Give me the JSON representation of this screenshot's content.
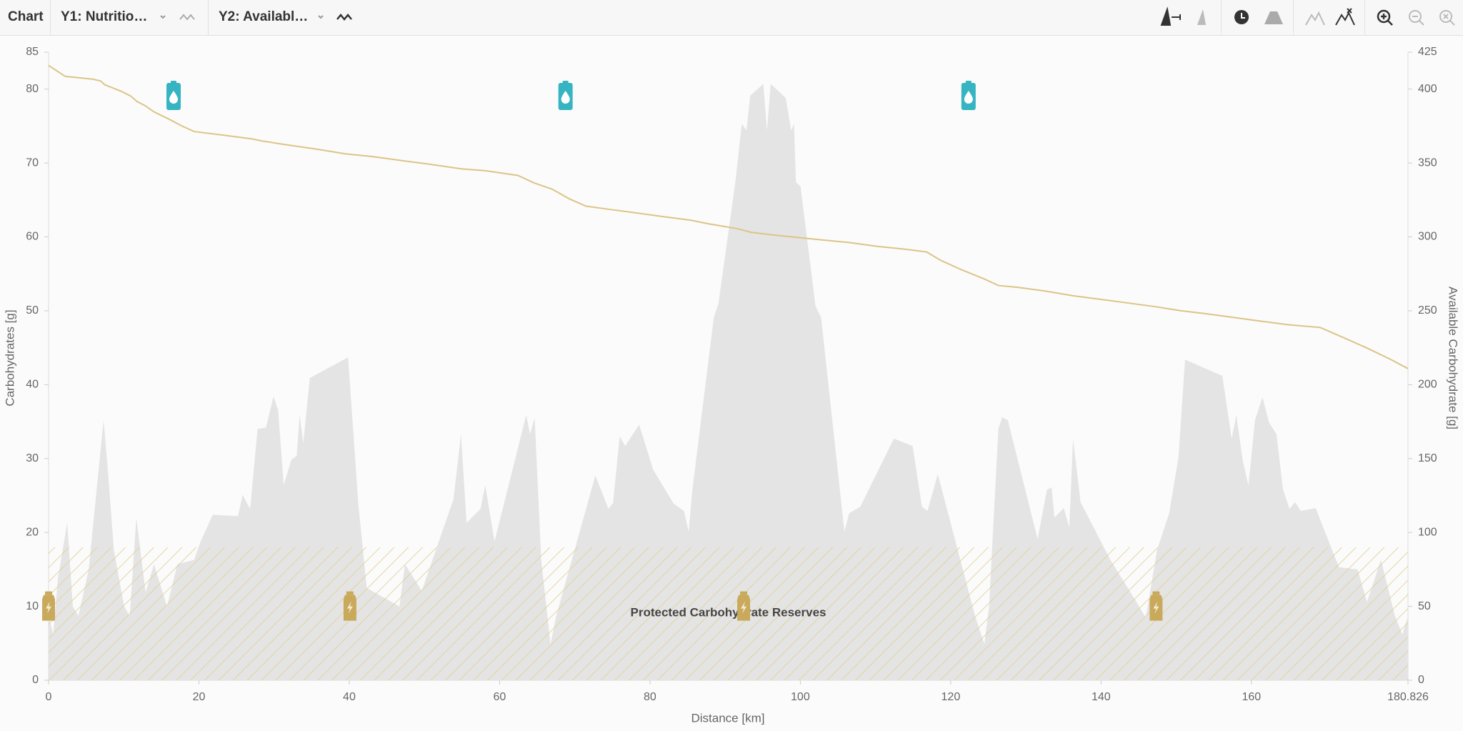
{
  "toolbar": {
    "title": "Chart",
    "y1": "Y1: Nutritio…",
    "y2": "Y2: Availabl…"
  },
  "chart_data": {
    "type": "line",
    "xlabel": "Distance [km]",
    "ylabel": "Carbohydrates [g]",
    "y2label": "Available Carbohydrate [g]",
    "xlim": [
      0,
      180.826
    ],
    "xticks": [
      0,
      20,
      40,
      60,
      80,
      100,
      120,
      140,
      160,
      180.826
    ],
    "ylim": [
      0,
      85
    ],
    "yticks": [
      0,
      10,
      20,
      30,
      40,
      50,
      60,
      70,
      80,
      85
    ],
    "y2lim": [
      0,
      425
    ],
    "y2ticks": [
      0,
      50,
      100,
      150,
      200,
      250,
      300,
      350,
      400,
      425
    ],
    "grid": false,
    "series": [
      {
        "type": "area",
        "color": "#e4e4e4",
        "x": [
          0,
          0.62,
          1.24,
          2.48,
          3.23,
          3.97,
          5.34,
          6.45,
          7.32,
          7.94,
          8.69,
          10.05,
          10.8,
          11.67,
          12.91,
          14.02,
          15.76,
          17.13,
          19.36,
          20.23,
          21.84,
          25.19,
          25.81,
          26.81,
          27.8,
          28.92,
          29.91,
          30.53,
          31.28,
          32.27,
          33.01,
          33.39,
          33.88,
          34.75,
          39.84,
          41.2,
          42.32,
          46.67,
          47.41,
          49.64,
          53.86,
          54.86,
          55.6,
          57.46,
          58.08,
          59.32,
          63.54,
          64.04,
          64.66,
          65.53,
          66.77,
          67.52,
          72.73,
          74.47,
          75.09,
          75.96,
          76.7,
          78.56,
          80.42,
          83.15,
          84.52,
          85.14,
          85.64,
          88.49,
          89.11,
          91.35,
          92.21,
          92.83,
          93.33,
          95.07,
          95.56,
          96.06,
          98.05,
          98.79,
          99.16,
          99.41,
          100.03,
          102.02,
          102.76,
          105.86,
          106.49,
          107.98,
          112.44,
          114.93,
          116.17,
          116.91,
          118.28,
          123.24,
          124.48,
          125.1,
          126.34,
          126.84,
          127.59,
          131.56,
          132.8,
          133.42,
          133.79,
          135.03,
          135.78,
          136.27,
          137.27,
          141.24,
          144.34,
          145.95,
          147.44,
          149.06,
          150.3,
          151.17,
          156.13,
          157.37,
          157.99,
          158.86,
          159.61,
          160.47,
          161.47,
          162.34,
          163.33,
          164.2,
          165.07,
          165.81,
          166.56,
          168.54,
          171.64,
          174.13,
          175.37,
          177.23,
          179.09,
          180.08,
          180.826
        ],
        "values": [
          8.7,
          6.2,
          13.8,
          21.3,
          10,
          8.7,
          15,
          26.4,
          35.2,
          27.7,
          17.6,
          10,
          8.7,
          22,
          11.9,
          15.7,
          10,
          15.7,
          16.3,
          18.8,
          22.4,
          22.2,
          25.1,
          23.2,
          34,
          34.2,
          38.4,
          36.6,
          26.4,
          29.8,
          30.4,
          35.9,
          32.1,
          40.9,
          43.7,
          23.9,
          12.5,
          10,
          15.7,
          12.1,
          24.5,
          33.3,
          21.3,
          23.2,
          26.4,
          18.8,
          35.9,
          33.3,
          35.5,
          16.3,
          4.9,
          8.7,
          27.7,
          23.2,
          24,
          33,
          31.7,
          34.6,
          28.5,
          23.9,
          22.9,
          20.1,
          25.8,
          49.1,
          51,
          67.4,
          75.3,
          74.4,
          79.1,
          80.7,
          74.4,
          80.7,
          78.8,
          74.4,
          75.3,
          67.4,
          66.8,
          50.6,
          49.1,
          20.1,
          22.6,
          23.5,
          32.7,
          31.7,
          23.5,
          22.9,
          27.9,
          8.7,
          4.9,
          10,
          34,
          35.6,
          35.2,
          19.1,
          25.8,
          26.1,
          22,
          23.3,
          20.7,
          32.7,
          24.1,
          16.3,
          11.2,
          8.5,
          17.6,
          22.6,
          30.2,
          43.4,
          41.2,
          32.7,
          35.9,
          29.6,
          26.4,
          35.2,
          38.3,
          34.9,
          33.3,
          25.8,
          23.2,
          24.1,
          22.9,
          23.3,
          15.3,
          15,
          10.6,
          16.3,
          8.7,
          6.2,
          8.7
        ]
      },
      {
        "type": "line",
        "axis": "y2",
        "color": "#dcc487",
        "x": [
          0,
          2.23,
          5.96,
          6.95,
          7.45,
          9.68,
          10.92,
          11.79,
          12.78,
          14.02,
          15.89,
          17.75,
          19.36,
          23.33,
          27.06,
          28.3,
          30.78,
          35.74,
          39.47,
          43.19,
          46.91,
          50.64,
          54.98,
          58.08,
          62.43,
          64.54,
          67.02,
          69.25,
          71.49,
          74.22,
          77.94,
          81.66,
          85.39,
          87.87,
          91.59,
          93.45,
          96.56,
          100.28,
          102.76,
          106.49,
          110.21,
          113.93,
          116.79,
          118.65,
          121.38,
          124.48,
          126.34,
          128.82,
          132.55,
          136.27,
          139.99,
          143.72,
          147.44,
          150.54,
          153.65,
          157.37,
          161.09,
          164.82,
          169.16,
          172.26,
          175.37,
          178.47,
          180.826
        ],
        "values": [
          416,
          408.6,
          406.7,
          405.4,
          403,
          398.5,
          395.3,
          391.5,
          389,
          384.6,
          380,
          375,
          371.3,
          368.8,
          366.3,
          365,
          363,
          359.3,
          356.2,
          354.3,
          351.7,
          349.2,
          346,
          344.8,
          341.6,
          336.6,
          332.2,
          325.8,
          320.8,
          318.9,
          316.4,
          313.8,
          311.3,
          308.8,
          305.6,
          303.1,
          301.2,
          299.3,
          298,
          296.2,
          293.6,
          291.7,
          289.8,
          284.2,
          277.9,
          271.5,
          267.1,
          265.9,
          263.4,
          260.2,
          257.7,
          255.2,
          252.6,
          250.1,
          248.2,
          245.7,
          243.1,
          240.6,
          238.7,
          231.8,
          224.8,
          217.2,
          210.9
        ]
      }
    ],
    "drinks": {
      "color": "#36b4c2",
      "x": [
        16.63,
        68.76,
        122.37
      ],
      "values": [
        79,
        79,
        79
      ]
    },
    "gels": {
      "color": "#c9aa5c",
      "x": [
        0,
        40.09,
        92.46,
        147.32
      ],
      "values": [
        10,
        10,
        10,
        10
      ]
    },
    "reserve": {
      "label": "Protected Carbohydrate Reserves",
      "y2": 90,
      "color": "#e2d08f"
    }
  }
}
